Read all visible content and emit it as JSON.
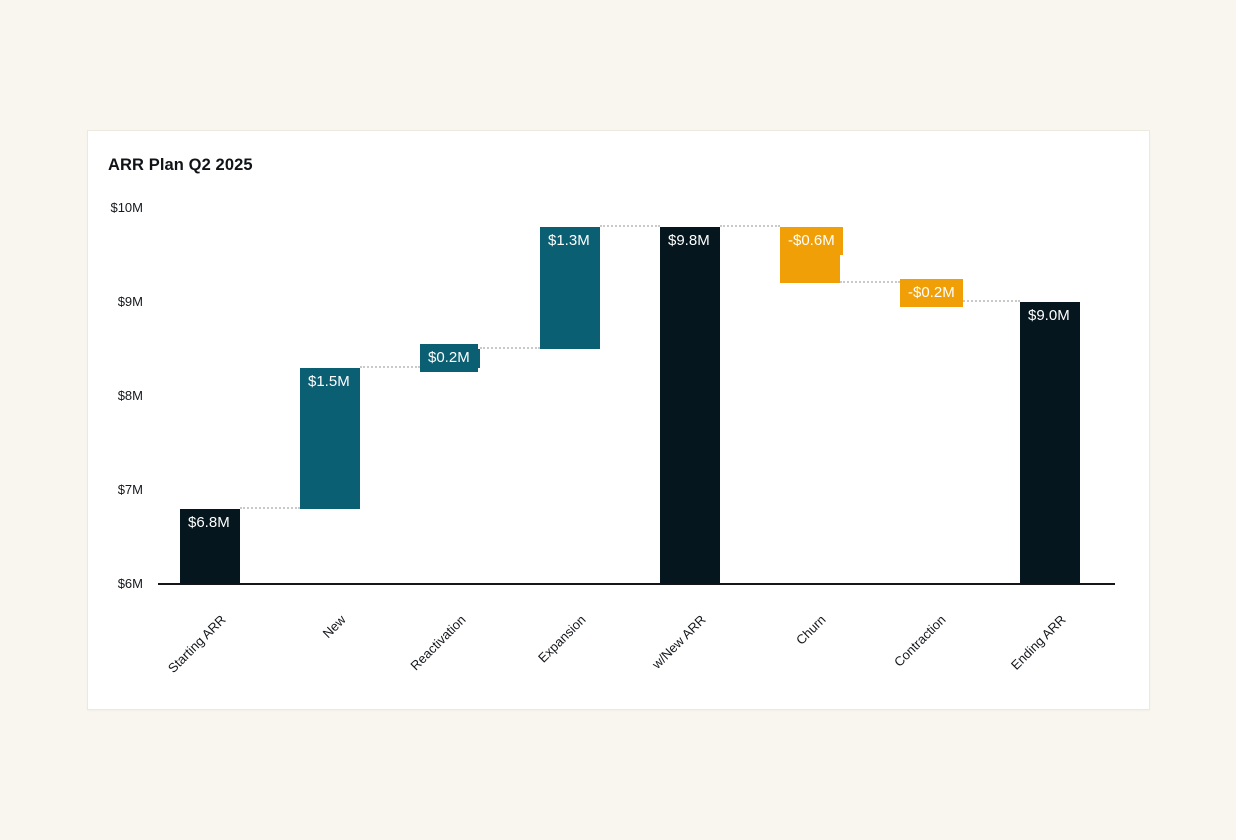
{
  "page": {
    "background_color": "#f8f6ef",
    "card_background_color": "#ffffff"
  },
  "chart_data": {
    "type": "waterfall-bar",
    "title": "ARR Plan Q2 2025",
    "unit": "USD millions (M)",
    "ylim": [
      6,
      10
    ],
    "grid": false,
    "legend": "none",
    "y_ticks": [
      {
        "label": "$6M",
        "value": 6
      },
      {
        "label": "$7M",
        "value": 7
      },
      {
        "label": "$8M",
        "value": 8
      },
      {
        "label": "$9M",
        "value": 9
      },
      {
        "label": "$10M",
        "value": 10
      }
    ],
    "categories": [
      "Starting ARR",
      "New",
      "Reactivation",
      "Expansion",
      "w/New ARR",
      "Churn",
      "Contraction",
      "Ending ARR"
    ],
    "bars": [
      {
        "category": "Starting ARR",
        "label": "$6.8M",
        "delta": 6.8,
        "start": 6.0,
        "end": 6.8,
        "role": "total"
      },
      {
        "category": "New",
        "label": "$1.5M",
        "delta": 1.5,
        "start": 6.8,
        "end": 8.3,
        "role": "increase"
      },
      {
        "category": "Reactivation",
        "label": "$0.2M",
        "delta": 0.2,
        "start": 8.3,
        "end": 8.5,
        "role": "increase"
      },
      {
        "category": "Expansion",
        "label": "$1.3M",
        "delta": 1.3,
        "start": 8.5,
        "end": 9.8,
        "role": "increase"
      },
      {
        "category": "w/New ARR",
        "label": "$9.8M",
        "delta": 9.8,
        "start": 6.0,
        "end": 9.8,
        "role": "total"
      },
      {
        "category": "Churn",
        "label": "-$0.6M",
        "delta": -0.6,
        "start": 9.8,
        "end": 9.2,
        "role": "decrease"
      },
      {
        "category": "Contraction",
        "label": "-$0.2M",
        "delta": -0.2,
        "start": 9.2,
        "end": 9.0,
        "role": "decrease"
      },
      {
        "category": "Ending ARR",
        "label": "$9.0M",
        "delta": 9.0,
        "start": 6.0,
        "end": 9.0,
        "role": "total"
      }
    ],
    "colors": {
      "total": "#05161e",
      "increase": "#0b5f72",
      "decrease": "#f0a006",
      "connector": "#c9c9c9",
      "axis": "#14161a",
      "bar_label_text": "#ffffff"
    }
  }
}
